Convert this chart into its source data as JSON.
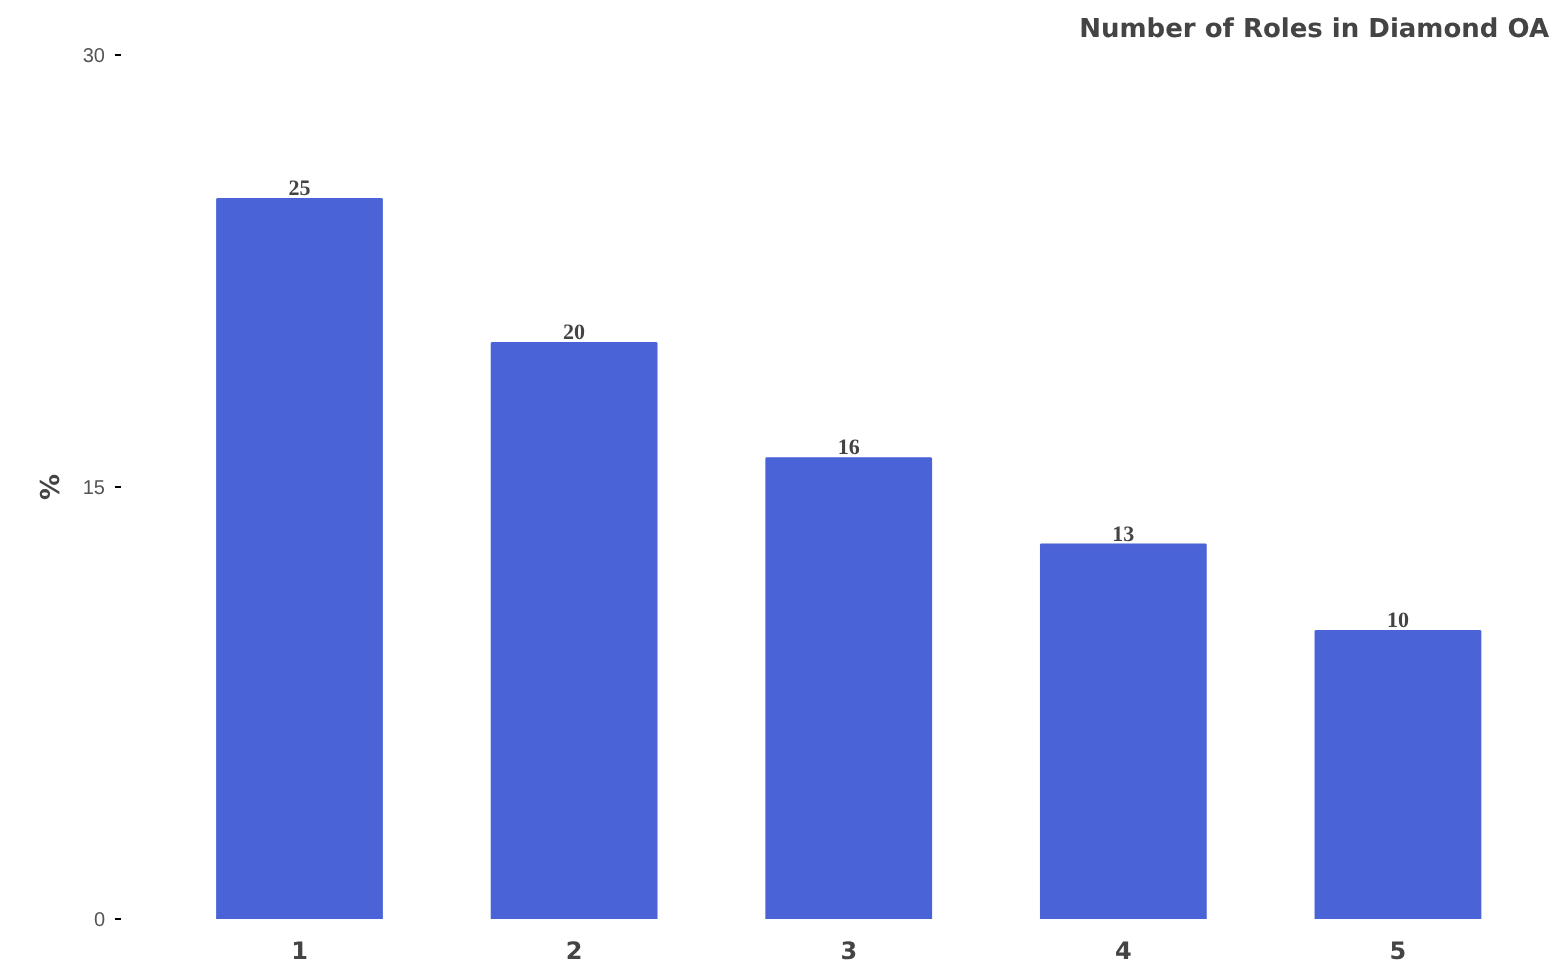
{
  "chart_data": {
    "type": "bar",
    "title": "Number of Roles in Diamond OA",
    "ylabel": "%",
    "categories": [
      "1",
      "2",
      "3",
      "4",
      "5"
    ],
    "values": [
      25,
      20,
      16,
      13,
      10
    ],
    "color": "#4a63d6",
    "ylim": [
      0,
      30
    ],
    "yticks": [
      0,
      15,
      30
    ],
    "grid": false,
    "data_labels": true
  }
}
